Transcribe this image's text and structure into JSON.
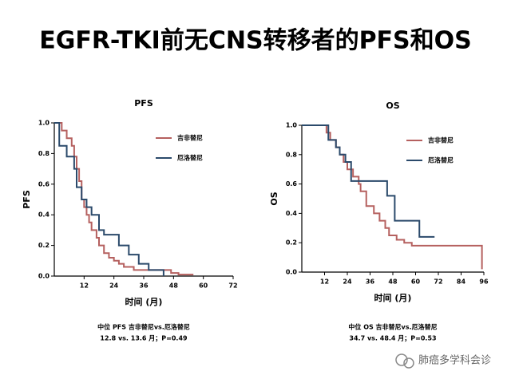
{
  "title": "EGFR-TKI前无CNS转移者的PFS和OS",
  "watermark": "肺癌多学科会诊",
  "chart_data": [
    {
      "type": "step",
      "title": "PFS",
      "y_label": "PFS",
      "x_label": "时间 (月)",
      "xlim": [
        0,
        72
      ],
      "xticks": [
        12,
        24,
        36,
        48,
        60,
        72
      ],
      "ylim": [
        0,
        1
      ],
      "yticks": [
        {
          "value": 0,
          "label": "0.0"
        },
        0.2,
        0.4,
        0.6,
        0.8,
        {
          "value": 1,
          "label": "1.0"
        }
      ],
      "legend": "upper right",
      "series": [
        {
          "name": "吉非替尼",
          "color": "#b5605f",
          "x": [
            0,
            3,
            5,
            7,
            8,
            9,
            10,
            11,
            12,
            13,
            14,
            15,
            17,
            18,
            20,
            22,
            24,
            26,
            28,
            32,
            47,
            50,
            56
          ],
          "values": [
            1,
            0.95,
            0.9,
            0.85,
            0.78,
            0.7,
            0.62,
            0.5,
            0.45,
            0.4,
            0.35,
            0.3,
            0.25,
            0.2,
            0.15,
            0.12,
            0.1,
            0.08,
            0.06,
            0.04,
            0.02,
            0.01,
            0.01
          ]
        },
        {
          "name": "厄洛替尼",
          "color": "#2b4a6b",
          "x": [
            0,
            2,
            5,
            8,
            9,
            11,
            13,
            15,
            18,
            20,
            26,
            30,
            34,
            38,
            44
          ],
          "values": [
            1,
            0.85,
            0.78,
            0.7,
            0.58,
            0.5,
            0.45,
            0.4,
            0.3,
            0.27,
            0.2,
            0.14,
            0.08,
            0.04,
            0
          ]
        }
      ],
      "notes": [
        "中位 PFS 吉非替尼vs.厄洛替尼",
        "12.8 vs. 13.6 月；P=0.49"
      ]
    },
    {
      "type": "step",
      "title": "OS",
      "y_label": "OS",
      "x_label": "时间 (月)",
      "xlim": [
        0,
        96
      ],
      "xticks": [
        12,
        24,
        36,
        48,
        60,
        72,
        84,
        96
      ],
      "ylim": [
        0,
        1
      ],
      "yticks": [
        {
          "value": 0,
          "label": "0.0"
        },
        0.2,
        0.4,
        0.6,
        0.8,
        {
          "value": 1,
          "label": "1.0"
        }
      ],
      "legend": "upper right",
      "series": [
        {
          "name": "吉非替尼",
          "color": "#b5605f",
          "x": [
            0,
            13,
            15,
            18,
            20,
            22,
            24,
            27,
            30,
            31,
            34,
            38,
            41,
            44,
            46,
            50,
            54,
            58,
            95
          ],
          "values": [
            1,
            0.95,
            0.9,
            0.85,
            0.8,
            0.75,
            0.7,
            0.65,
            0.6,
            0.55,
            0.45,
            0.4,
            0.35,
            0.3,
            0.25,
            0.22,
            0.2,
            0.18,
            0.02
          ]
        },
        {
          "name": "厄洛替尼",
          "color": "#2b4a6b",
          "x": [
            0,
            14,
            18,
            20,
            23,
            26,
            45,
            49,
            62,
            70
          ],
          "values": [
            1,
            0.9,
            0.85,
            0.8,
            0.75,
            0.62,
            0.52,
            0.35,
            0.24,
            0.24
          ]
        }
      ],
      "notes": [
        "中位 OS 吉非替尼vs.厄洛替尼",
        "34.7 vs. 48.4 月；P=0.53"
      ]
    }
  ]
}
